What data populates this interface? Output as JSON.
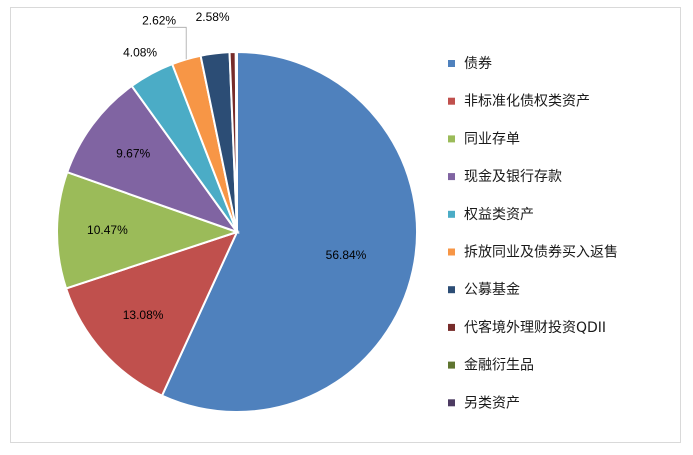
{
  "chart_data": {
    "type": "pie",
    "title": "",
    "legend_position": "right",
    "categories": [
      "债券",
      "非标准化债权类资产",
      "同业存单",
      "现金及银行存款",
      "权益类资产",
      "拆放同业及债券买入返售",
      "公募基金",
      "代客境外理财投资QDII",
      "金融衍生品",
      "另类资产"
    ],
    "values": [
      56.84,
      13.08,
      10.47,
      9.67,
      4.08,
      2.62,
      2.58,
      0.55,
      0.05,
      0.06
    ],
    "data_labels": [
      "56.84%",
      "13.08%",
      "10.47%",
      "9.67%",
      "4.08%",
      "2.62%",
      "2.58%",
      "",
      "",
      ""
    ],
    "colors": [
      "#4f81bd",
      "#c0504d",
      "#9bbb59",
      "#8064a2",
      "#4bacc6",
      "#f79646",
      "#2c4d75",
      "#772c2a",
      "#5f7530",
      "#4d3b62"
    ]
  }
}
